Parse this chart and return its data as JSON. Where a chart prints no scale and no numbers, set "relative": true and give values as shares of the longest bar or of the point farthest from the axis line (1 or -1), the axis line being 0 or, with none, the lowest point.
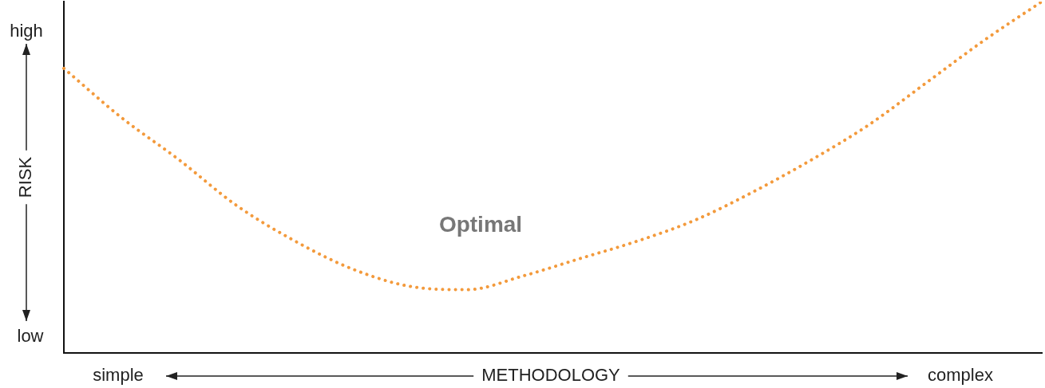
{
  "chart_data": {
    "type": "line",
    "relative": true,
    "xlabel": "METHODOLOGY",
    "ylabel": "RISK",
    "annotations": [
      "Optimal",
      "high",
      "low",
      "simple",
      "complex"
    ],
    "categories": [
      null,
      null,
      null,
      null,
      null,
      null,
      null,
      null,
      null,
      null,
      null,
      null,
      null,
      null,
      null,
      null,
      null,
      null
    ],
    "series": [
      {
        "color": "#f39a3c",
        "values": [
          0.81,
          0.67,
          0.55,
          0.42,
          0.32,
          0.24,
          0.19,
          0.18,
          0.22,
          0.27,
          0.32,
          0.38,
          0.46,
          0.55,
          0.65,
          0.77,
          0.89,
          1.0
        ]
      }
    ],
    "line_style": "dotted",
    "marker": "none",
    "grid": false,
    "legend": false
  }
}
